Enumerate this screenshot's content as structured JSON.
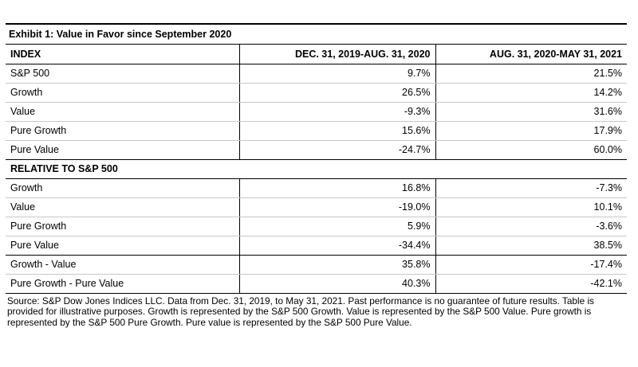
{
  "exhibit": {
    "title": "Exhibit 1: Value in Favor since September 2020",
    "columns": [
      "INDEX",
      "DEC. 31, 2019-AUG. 31, 2020",
      "AUG. 31, 2020-MAY 31, 2021"
    ],
    "rows": [
      {
        "label": "S&P 500",
        "v1": "9.7%",
        "v2": "21.5%"
      },
      {
        "label": "Growth",
        "v1": "26.5%",
        "v2": "14.2%"
      },
      {
        "label": "Value",
        "v1": "-9.3%",
        "v2": "31.6%"
      },
      {
        "label": "Pure Growth",
        "v1": "15.6%",
        "v2": "17.9%"
      },
      {
        "label": "Pure Value",
        "v1": "-24.7%",
        "v2": "60.0%"
      }
    ],
    "section_label": "RELATIVE TO S&P 500",
    "relative_rows": [
      {
        "label": "Growth",
        "v1": "16.8%",
        "v2": "-7.3%"
      },
      {
        "label": "Value",
        "v1": "-19.0%",
        "v2": "10.1%"
      },
      {
        "label": "Pure Growth",
        "v1": "5.9%",
        "v2": "-3.6%"
      },
      {
        "label": "Pure Value",
        "v1": "-34.4%",
        "v2": "38.5%"
      },
      {
        "label": "Growth - Value",
        "v1": "35.8%",
        "v2": "-17.4%"
      },
      {
        "label": "Pure Growth - Pure Value",
        "v1": "40.3%",
        "v2": "-42.1%"
      }
    ],
    "source_note": "Source: S&P Dow Jones Indices LLC. Data from Dec. 31, 2019, to May 31, 2021. Past performance is no guarantee of future results. Table is provided for illustrative purposes. Growth is represented by the S&P 500 Growth. Value is represented by the S&P 500 Value. Pure growth is represented by the S&P 500 Pure Growth. Pure value is represented by the S&P 500 Pure Value."
  }
}
